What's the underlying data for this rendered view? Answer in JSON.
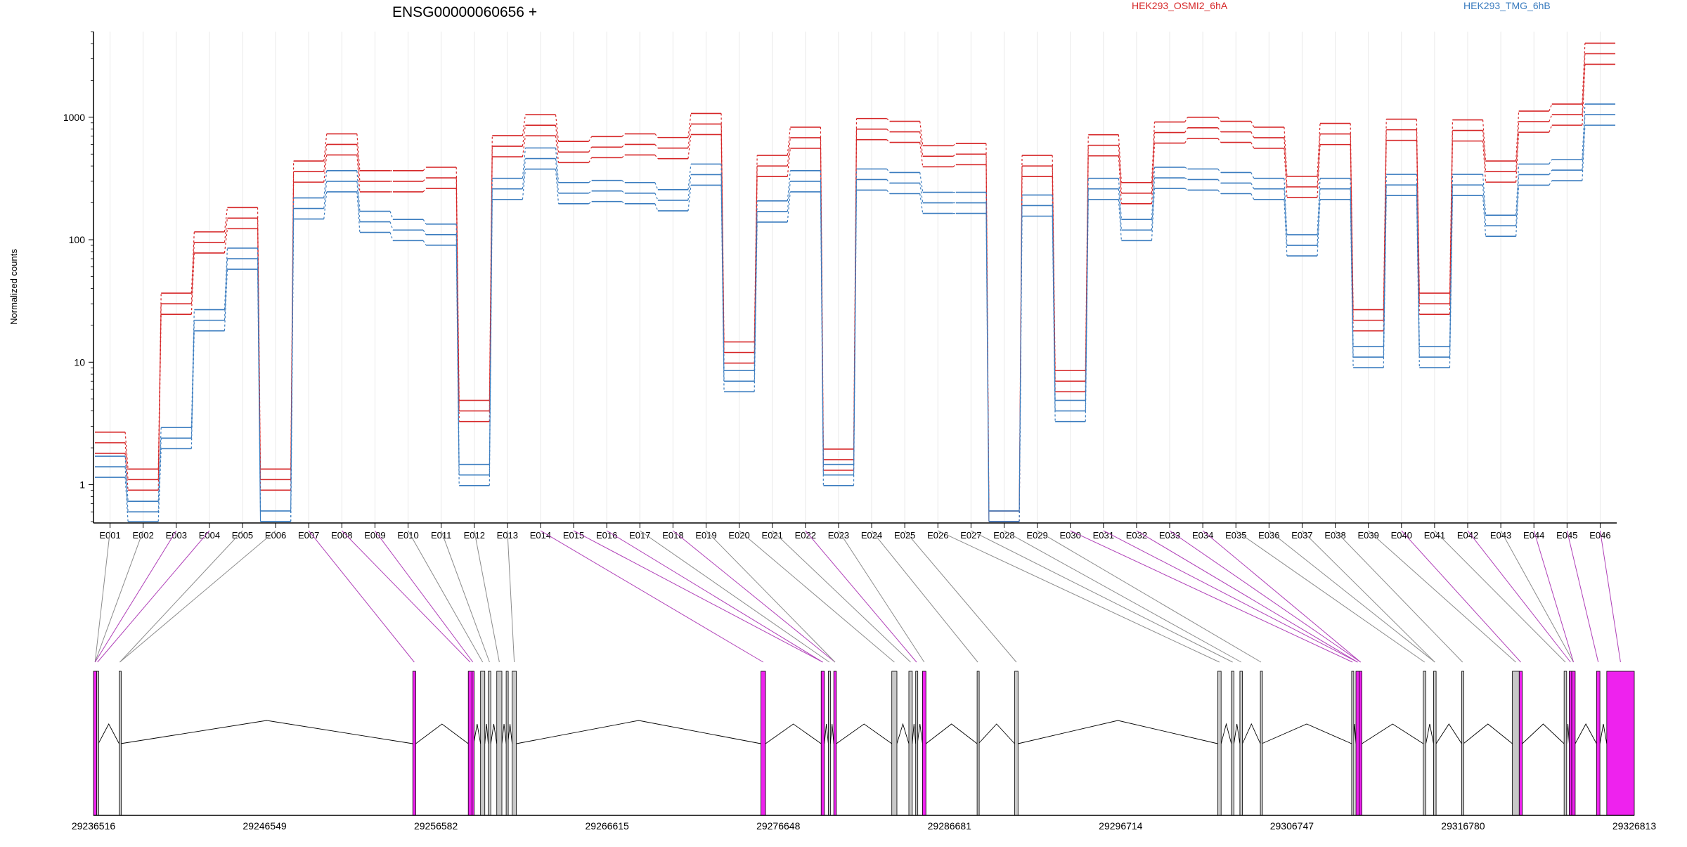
{
  "chart_data": {
    "type": "line",
    "title": "ENSG00000060656 +",
    "ylabel": "Normalized counts",
    "xlabel": "",
    "yscale": "log",
    "ylim": [
      0.5,
      5000
    ],
    "yticks": [
      "1",
      "10",
      "100",
      "1000"
    ],
    "grid": "vertical per exon",
    "legend_placement": "top",
    "categories": [
      "E001",
      "E002",
      "E003",
      "E004",
      "E005",
      "E006",
      "E007",
      "E008",
      "E009",
      "E010",
      "E011",
      "E012",
      "E013",
      "E014",
      "E015",
      "E016",
      "E017",
      "E018",
      "E019",
      "E020",
      "E021",
      "E022",
      "E023",
      "E024",
      "E025",
      "E026",
      "E027",
      "E028",
      "E029",
      "E030",
      "E031",
      "E032",
      "E033",
      "E034",
      "E035",
      "E036",
      "E037",
      "E038",
      "E039",
      "E040",
      "E041",
      "E042",
      "E043",
      "E044",
      "E045",
      "E046"
    ],
    "series": [
      {
        "name": "HEK293_OSMI2_6hA",
        "color": "#d62728",
        "values": [
          2.2,
          1.1,
          30,
          95,
          150,
          1.1,
          360,
          600,
          300,
          300,
          320,
          4,
          580,
          860,
          520,
          570,
          600,
          560,
          880,
          12,
          400,
          680,
          1.6,
          800,
          760,
          480,
          500,
          0.5,
          400,
          7,
          590,
          240,
          750,
          820,
          760,
          680,
          270,
          730,
          22,
          790,
          30,
          780,
          360,
          920,
          1050,
          3300
        ]
      },
      {
        "name": "HEK293_TMG_6hB",
        "color": "#3a7cbf",
        "values": [
          1.4,
          0.6,
          2.4,
          22,
          70,
          0.5,
          180,
          300,
          140,
          120,
          110,
          1.2,
          260,
          460,
          240,
          250,
          240,
          210,
          340,
          7,
          170,
          300,
          1.2,
          310,
          290,
          200,
          200,
          0.5,
          190,
          4,
          260,
          120,
          320,
          310,
          290,
          260,
          90,
          260,
          11,
          280,
          11,
          280,
          130,
          340,
          370,
          1050
        ]
      }
    ],
    "gene_model": {
      "genomic_ticks": [
        "29236516",
        "29246549",
        "29256582",
        "29266615",
        "29276648",
        "29286681",
        "29296714",
        "29306747",
        "29316780",
        "29326813"
      ],
      "start": 29236516,
      "end": 29326813,
      "highlight_color": "#ee22ee",
      "plain_color": "#c8c8c8",
      "exons": [
        {
          "start": 29236516,
          "end": 29236700,
          "hl": true
        },
        {
          "start": 29236700,
          "end": 29236800,
          "hl": false
        },
        {
          "start": 29238020,
          "end": 29238100,
          "hl": false
        },
        {
          "start": 29255230,
          "end": 29255400,
          "hl": true
        },
        {
          "start": 29258480,
          "end": 29258700,
          "hl": true
        },
        {
          "start": 29258700,
          "end": 29258800,
          "hl": true
        },
        {
          "start": 29259200,
          "end": 29259450,
          "hl": false
        },
        {
          "start": 29259650,
          "end": 29259800,
          "hl": false
        },
        {
          "start": 29260150,
          "end": 29260450,
          "hl": false
        },
        {
          "start": 29260700,
          "end": 29260800,
          "hl": false
        },
        {
          "start": 29261050,
          "end": 29261300,
          "hl": false
        },
        {
          "start": 29275630,
          "end": 29275900,
          "hl": true
        },
        {
          "start": 29279160,
          "end": 29279350,
          "hl": true
        },
        {
          "start": 29279580,
          "end": 29279700,
          "hl": false
        },
        {
          "start": 29279900,
          "end": 29280050,
          "hl": true
        },
        {
          "start": 29283300,
          "end": 29283600,
          "hl": false
        },
        {
          "start": 29284300,
          "end": 29284500,
          "hl": false
        },
        {
          "start": 29284700,
          "end": 29284800,
          "hl": false
        },
        {
          "start": 29285100,
          "end": 29285300,
          "hl": true
        },
        {
          "start": 29288300,
          "end": 29288380,
          "hl": false
        },
        {
          "start": 29290500,
          "end": 29290700,
          "hl": false
        },
        {
          "start": 29302400,
          "end": 29302600,
          "hl": false
        },
        {
          "start": 29303200,
          "end": 29303350,
          "hl": false
        },
        {
          "start": 29303700,
          "end": 29303850,
          "hl": false
        },
        {
          "start": 29304900,
          "end": 29304980,
          "hl": false
        },
        {
          "start": 29310250,
          "end": 29310350,
          "hl": false
        },
        {
          "start": 29310500,
          "end": 29310700,
          "hl": true
        },
        {
          "start": 29310700,
          "end": 29310850,
          "hl": true
        },
        {
          "start": 29314450,
          "end": 29314600,
          "hl": false
        },
        {
          "start": 29315050,
          "end": 29315200,
          "hl": false
        },
        {
          "start": 29316700,
          "end": 29316800,
          "hl": false
        },
        {
          "start": 29319670,
          "end": 29320070,
          "hl": false
        },
        {
          "start": 29320070,
          "end": 29320250,
          "hl": true
        },
        {
          "start": 29322700,
          "end": 29322850,
          "hl": false
        },
        {
          "start": 29323000,
          "end": 29323150,
          "hl": true
        },
        {
          "start": 29323150,
          "end": 29323350,
          "hl": true
        },
        {
          "start": 29324600,
          "end": 29324800,
          "hl": true
        },
        {
          "start": 29325200,
          "end": 29326813,
          "hl": true
        }
      ],
      "exon_links": [
        {
          "exon": "E001",
          "idx": 0,
          "hl": false
        },
        {
          "exon": "E002",
          "idx": 0,
          "hl": false
        },
        {
          "exon": "E003",
          "idx": 0,
          "hl": true
        },
        {
          "exon": "E004",
          "idx": 1,
          "hl": true
        },
        {
          "exon": "E005",
          "idx": 2,
          "hl": false
        },
        {
          "exon": "E006",
          "idx": 2,
          "hl": false
        },
        {
          "exon": "E007",
          "idx": 3,
          "hl": true
        },
        {
          "exon": "E008",
          "idx": 4,
          "hl": true
        },
        {
          "exon": "E009",
          "idx": 5,
          "hl": true
        },
        {
          "exon": "E010",
          "idx": 6,
          "hl": false
        },
        {
          "exon": "E011",
          "idx": 7,
          "hl": false
        },
        {
          "exon": "E012",
          "idx": 8,
          "hl": false
        },
        {
          "exon": "E013",
          "idx": 10,
          "hl": false
        },
        {
          "exon": "E014",
          "idx": 11,
          "hl": true
        },
        {
          "exon": "E015",
          "idx": 12,
          "hl": true
        },
        {
          "exon": "E016",
          "idx": 12,
          "hl": true
        },
        {
          "exon": "E017",
          "idx": 13,
          "hl": false
        },
        {
          "exon": "E018",
          "idx": 14,
          "hl": true
        },
        {
          "exon": "E019",
          "idx": 14,
          "hl": false
        },
        {
          "exon": "E020",
          "idx": 15,
          "hl": false
        },
        {
          "exon": "E021",
          "idx": 16,
          "hl": false
        },
        {
          "exon": "E022",
          "idx": 17,
          "hl": true
        },
        {
          "exon": "E023",
          "idx": 18,
          "hl": false
        },
        {
          "exon": "E024",
          "idx": 19,
          "hl": false
        },
        {
          "exon": "E025",
          "idx": 20,
          "hl": false
        },
        {
          "exon": "E026",
          "idx": 21,
          "hl": false
        },
        {
          "exon": "E027",
          "idx": 22,
          "hl": false
        },
        {
          "exon": "E028",
          "idx": 23,
          "hl": false
        },
        {
          "exon": "E029",
          "idx": 24,
          "hl": false
        },
        {
          "exon": "E030",
          "idx": 25,
          "hl": true
        },
        {
          "exon": "E031",
          "idx": 26,
          "hl": true
        },
        {
          "exon": "E032",
          "idx": 26,
          "hl": true
        },
        {
          "exon": "E033",
          "idx": 27,
          "hl": true
        },
        {
          "exon": "E034",
          "idx": 27,
          "hl": true
        },
        {
          "exon": "E035",
          "idx": 28,
          "hl": false
        },
        {
          "exon": "E036",
          "idx": 29,
          "hl": false
        },
        {
          "exon": "E037",
          "idx": 29,
          "hl": false
        },
        {
          "exon": "E038",
          "idx": 30,
          "hl": false
        },
        {
          "exon": "E039",
          "idx": 31,
          "hl": false
        },
        {
          "exon": "E040",
          "idx": 32,
          "hl": true
        },
        {
          "exon": "E041",
          "idx": 33,
          "hl": false
        },
        {
          "exon": "E042",
          "idx": 34,
          "hl": true
        },
        {
          "exon": "E043",
          "idx": 35,
          "hl": false
        },
        {
          "exon": "E044",
          "idx": 35,
          "hl": true
        },
        {
          "exon": "E045",
          "idx": 36,
          "hl": true
        },
        {
          "exon": "E046",
          "idx": 37,
          "hl": true
        }
      ]
    }
  }
}
